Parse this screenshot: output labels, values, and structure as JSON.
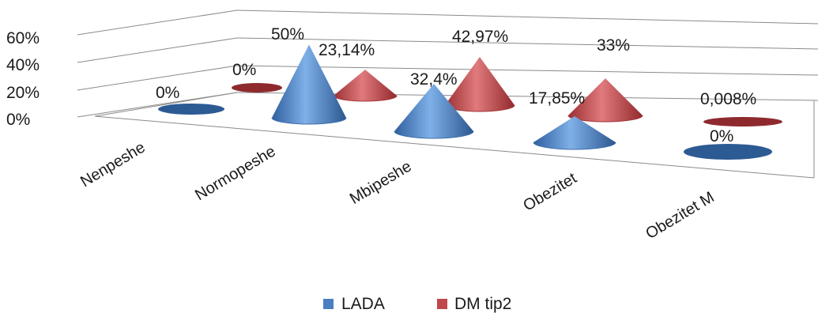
{
  "chart_data": {
    "type": "bar",
    "subtype": "3d-cone",
    "categories": [
      "Nenpeshe",
      "Normopeshe",
      "Mbipeshe",
      "Obezitet",
      "Obezitet M"
    ],
    "series": [
      {
        "name": "LADA",
        "color": "#4a7fc1",
        "values": [
          0,
          50,
          32.4,
          17.85,
          0
        ],
        "labels": [
          "0%",
          "50%",
          "32,4%",
          "17,85%",
          "0%"
        ]
      },
      {
        "name": "DM tip2",
        "color": "#c0474a",
        "values": [
          0,
          23.14,
          42.97,
          33,
          0.008
        ],
        "labels": [
          "0%",
          "23,14%",
          "42,97%",
          "33%",
          "0,008%"
        ]
      }
    ],
    "yticks": [
      "0%",
      "20%",
      "40%",
      "60%"
    ],
    "ylim": [
      0,
      60
    ],
    "grid": true,
    "legend_position": "bottom"
  }
}
